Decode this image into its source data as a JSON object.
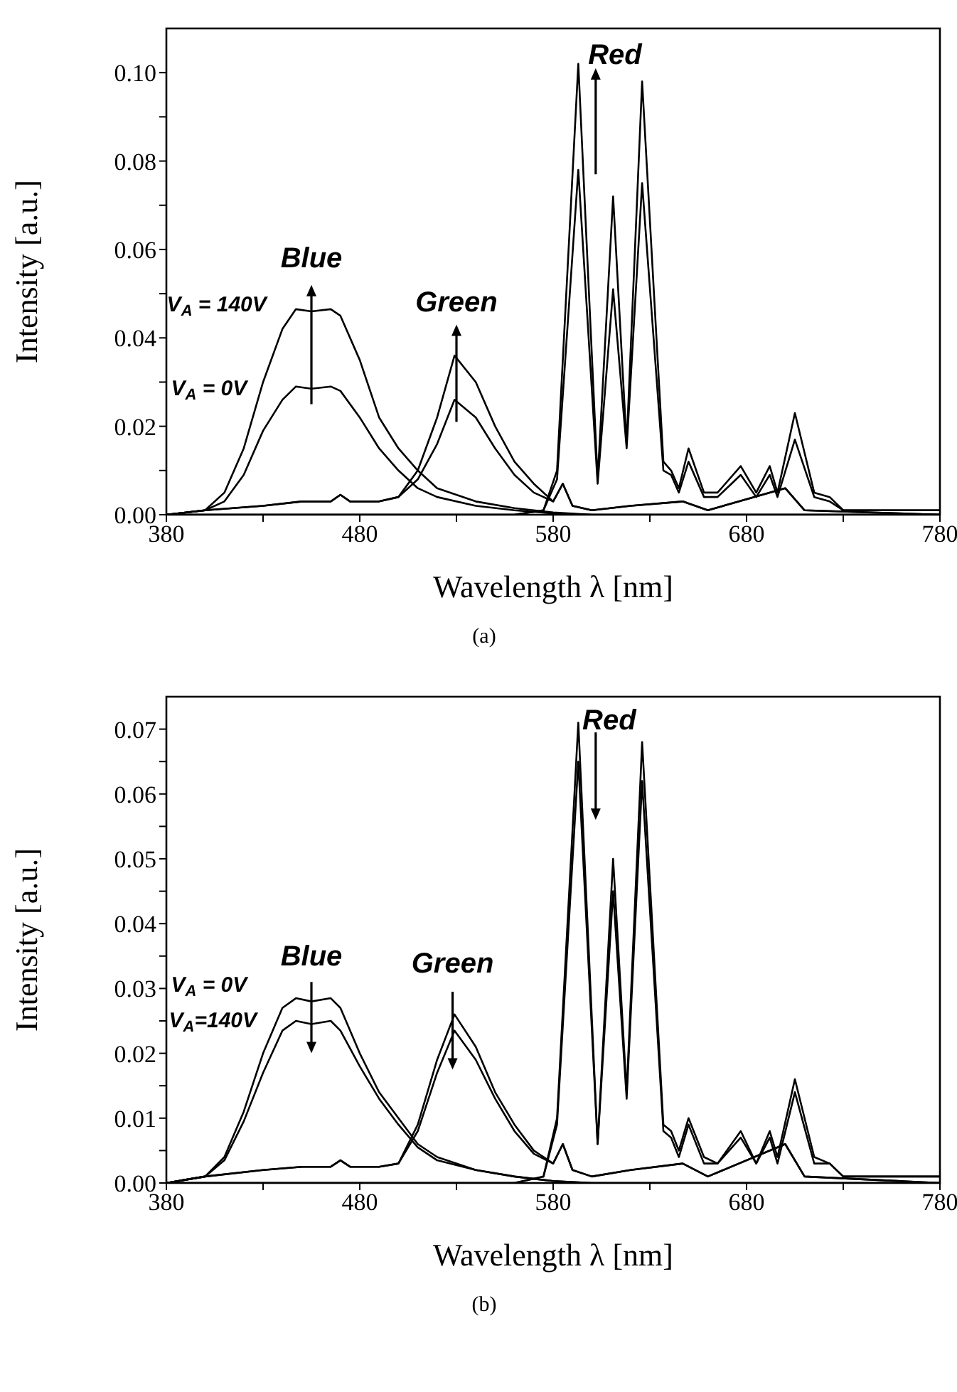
{
  "chart_data": [
    {
      "type": "line",
      "xlabel": "Wavelength λ [nm]",
      "ylabel": "Intensity [a.u.]",
      "xlim": [
        380,
        780
      ],
      "ylim": [
        0,
        0.11
      ],
      "line_style": "solid",
      "marker": "none",
      "grid": false,
      "xticks": [
        380,
        {
          "value": 430,
          "label": null
        },
        480,
        {
          "value": 530,
          "label": null
        },
        580,
        {
          "value": 630,
          "label": null
        },
        680,
        {
          "value": 730,
          "label": null
        },
        780
      ],
      "yticks": [
        {
          "value": 0,
          "label": "0.00"
        },
        {
          "value": 0.01,
          "label": null
        },
        {
          "value": 0.02,
          "label": "0.02"
        },
        {
          "value": 0.03,
          "label": null
        },
        {
          "value": 0.04,
          "label": "0.04"
        },
        {
          "value": 0.05,
          "label": null
        },
        {
          "value": 0.06,
          "label": "0.06"
        },
        {
          "value": 0.07,
          "label": null
        },
        {
          "value": 0.08,
          "label": "0.08"
        },
        {
          "value": 0.09,
          "label": null
        },
        {
          "value": 0.1,
          "label": "0.10"
        }
      ],
      "series": [
        {
          "color": "#000000",
          "x": [
            380,
            400,
            410,
            420,
            430,
            440,
            447,
            455,
            465,
            470,
            480,
            490,
            500,
            510,
            520,
            540,
            560,
            580,
            600,
            780
          ],
          "values": [
            0,
            0.001,
            0.005,
            0.015,
            0.03,
            0.042,
            0.0465,
            0.046,
            0.0465,
            0.045,
            0.035,
            0.022,
            0.015,
            0.01,
            0.006,
            0.003,
            0.0015,
            0.0005,
            0,
            0
          ]
        },
        {
          "color": "#000000",
          "x": [
            380,
            400,
            410,
            420,
            430,
            440,
            447,
            455,
            465,
            470,
            480,
            490,
            500,
            510,
            520,
            540,
            560,
            580,
            600,
            780
          ],
          "values": [
            0,
            0.001,
            0.003,
            0.009,
            0.019,
            0.026,
            0.029,
            0.0285,
            0.029,
            0.028,
            0.022,
            0.015,
            0.01,
            0.006,
            0.004,
            0.002,
            0.001,
            0.0003,
            0,
            0
          ]
        },
        {
          "color": "#000000",
          "x": [
            380,
            400,
            430,
            450,
            465,
            470,
            475,
            490,
            500,
            510,
            520,
            529,
            540,
            550,
            560,
            570,
            580,
            585,
            590,
            600,
            620,
            647,
            660,
            700,
            710,
            780
          ],
          "values": [
            0,
            0.001,
            0.002,
            0.003,
            0.003,
            0.0045,
            0.003,
            0.003,
            0.004,
            0.01,
            0.022,
            0.036,
            0.03,
            0.02,
            0.012,
            0.007,
            0.003,
            0.007,
            0.002,
            0.001,
            0.002,
            0.003,
            0.001,
            0.006,
            0.001,
            0
          ]
        },
        {
          "color": "#000000",
          "x": [
            380,
            400,
            430,
            450,
            465,
            470,
            475,
            490,
            500,
            510,
            520,
            529,
            540,
            550,
            560,
            570,
            580,
            585,
            590,
            600,
            620,
            647,
            660,
            700,
            710,
            780
          ],
          "values": [
            0,
            0.001,
            0.002,
            0.003,
            0.003,
            0.0045,
            0.003,
            0.003,
            0.004,
            0.008,
            0.016,
            0.026,
            0.022,
            0.015,
            0.009,
            0.005,
            0.003,
            0.007,
            0.002,
            0.001,
            0.002,
            0.003,
            0.001,
            0.006,
            0.001,
            0
          ]
        },
        {
          "color": "#000000",
          "x": [
            380,
            560,
            575,
            582,
            593,
            603,
            611,
            618,
            626,
            637,
            641,
            645,
            650,
            658,
            665,
            677,
            685,
            692,
            696,
            705,
            715,
            723,
            730,
            780
          ],
          "values": [
            0,
            0,
            0.001,
            0.01,
            0.102,
            0.008,
            0.072,
            0.016,
            0.098,
            0.012,
            0.01,
            0.006,
            0.015,
            0.005,
            0.005,
            0.011,
            0.005,
            0.011,
            0.005,
            0.023,
            0.005,
            0.004,
            0.001,
            0.001
          ]
        },
        {
          "color": "#000000",
          "x": [
            380,
            560,
            575,
            582,
            593,
            603,
            611,
            618,
            626,
            637,
            641,
            645,
            650,
            658,
            665,
            677,
            685,
            692,
            696,
            705,
            715,
            723,
            730,
            780
          ],
          "values": [
            0,
            0,
            0.001,
            0.008,
            0.078,
            0.007,
            0.051,
            0.015,
            0.075,
            0.01,
            0.009,
            0.005,
            0.012,
            0.004,
            0.004,
            0.009,
            0.004,
            0.009,
            0.004,
            0.017,
            0.004,
            0.003,
            0.001,
            0.001
          ]
        }
      ],
      "annotations": [
        "Blue",
        "V$_{A}$ = 140V",
        "V$_{A}$ = 0V",
        "Green",
        "Red",
        "(a)"
      ]
    },
    {
      "type": "line",
      "xlabel": "Wavelength λ [nm]",
      "ylabel": "Intensity [a.u.]",
      "xlim": [
        380,
        780
      ],
      "ylim": [
        0,
        0.075
      ],
      "line_style": "solid",
      "marker": "none",
      "grid": false,
      "xticks": [
        380,
        {
          "value": 430,
          "label": null
        },
        480,
        {
          "value": 530,
          "label": null
        },
        580,
        {
          "value": 630,
          "label": null
        },
        680,
        {
          "value": 730,
          "label": null
        },
        780
      ],
      "yticks": [
        {
          "value": 0,
          "label": "0.00"
        },
        {
          "value": 0.005,
          "label": null
        },
        {
          "value": 0.01,
          "label": "0.01"
        },
        {
          "value": 0.015,
          "label": null
        },
        {
          "value": 0.02,
          "label": "0.02"
        },
        {
          "value": 0.025,
          "label": null
        },
        {
          "value": 0.03,
          "label": "0.03"
        },
        {
          "value": 0.035,
          "label": null
        },
        {
          "value": 0.04,
          "label": "0.04"
        },
        {
          "value": 0.045,
          "label": null
        },
        {
          "value": 0.05,
          "label": "0.05"
        },
        {
          "value": 0.055,
          "label": null
        },
        {
          "value": 0.06,
          "label": "0.06"
        },
        {
          "value": 0.065,
          "label": null
        },
        {
          "value": 0.07,
          "label": "0.07"
        }
      ],
      "series": [
        {
          "color": "#000000",
          "x": [
            380,
            400,
            410,
            420,
            430,
            440,
            447,
            455,
            465,
            470,
            480,
            490,
            500,
            510,
            520,
            540,
            560,
            580,
            600,
            780
          ],
          "values": [
            0,
            0.001,
            0.004,
            0.011,
            0.02,
            0.027,
            0.0285,
            0.028,
            0.0285,
            0.027,
            0.02,
            0.014,
            0.01,
            0.006,
            0.004,
            0.002,
            0.001,
            0.0003,
            0,
            0
          ]
        },
        {
          "color": "#000000",
          "x": [
            380,
            400,
            410,
            420,
            430,
            440,
            447,
            455,
            465,
            470,
            480,
            490,
            500,
            510,
            520,
            540,
            560,
            580,
            600,
            780
          ],
          "values": [
            0,
            0.001,
            0.0035,
            0.0095,
            0.017,
            0.0235,
            0.025,
            0.0245,
            0.025,
            0.0235,
            0.018,
            0.013,
            0.009,
            0.0055,
            0.0035,
            0.002,
            0.001,
            0.0003,
            0,
            0
          ]
        },
        {
          "color": "#000000",
          "x": [
            380,
            400,
            430,
            450,
            465,
            470,
            475,
            490,
            500,
            510,
            520,
            529,
            540,
            550,
            560,
            570,
            580,
            585,
            590,
            600,
            620,
            647,
            660,
            700,
            710,
            780
          ],
          "values": [
            0,
            0.001,
            0.002,
            0.0025,
            0.0025,
            0.0035,
            0.0025,
            0.0025,
            0.003,
            0.009,
            0.019,
            0.026,
            0.021,
            0.014,
            0.009,
            0.005,
            0.003,
            0.006,
            0.002,
            0.001,
            0.002,
            0.003,
            0.001,
            0.006,
            0.001,
            0
          ]
        },
        {
          "color": "#000000",
          "x": [
            380,
            400,
            430,
            450,
            465,
            470,
            475,
            490,
            500,
            510,
            520,
            529,
            540,
            550,
            560,
            570,
            580,
            585,
            590,
            600,
            620,
            647,
            660,
            700,
            710,
            780
          ],
          "values": [
            0,
            0.001,
            0.002,
            0.0025,
            0.0025,
            0.0035,
            0.0025,
            0.0025,
            0.003,
            0.008,
            0.017,
            0.0235,
            0.019,
            0.013,
            0.008,
            0.0045,
            0.003,
            0.006,
            0.002,
            0.001,
            0.002,
            0.003,
            0.001,
            0.006,
            0.001,
            0
          ]
        },
        {
          "color": "#000000",
          "x": [
            380,
            560,
            575,
            582,
            593,
            603,
            611,
            618,
            626,
            637,
            641,
            645,
            650,
            658,
            665,
            677,
            685,
            692,
            696,
            705,
            715,
            723,
            730,
            780
          ],
          "values": [
            0,
            0,
            0.001,
            0.01,
            0.071,
            0.006,
            0.05,
            0.014,
            0.068,
            0.009,
            0.008,
            0.005,
            0.01,
            0.004,
            0.003,
            0.008,
            0.003,
            0.008,
            0.004,
            0.016,
            0.004,
            0.003,
            0.001,
            0.001
          ]
        },
        {
          "color": "#000000",
          "x": [
            380,
            560,
            575,
            582,
            593,
            603,
            611,
            618,
            626,
            637,
            641,
            645,
            650,
            658,
            665,
            677,
            685,
            692,
            696,
            705,
            715,
            723,
            730,
            780
          ],
          "values": [
            0,
            0,
            0.001,
            0.009,
            0.065,
            0.006,
            0.045,
            0.013,
            0.062,
            0.008,
            0.007,
            0.004,
            0.009,
            0.003,
            0.003,
            0.007,
            0.003,
            0.007,
            0.003,
            0.014,
            0.003,
            0.003,
            0.001,
            0.001
          ]
        }
      ],
      "annotations": [
        "Blue",
        "V$_{A}$ = 0V",
        "V$_{A}$=140V",
        "Green",
        "Red",
        "(b)"
      ]
    }
  ]
}
